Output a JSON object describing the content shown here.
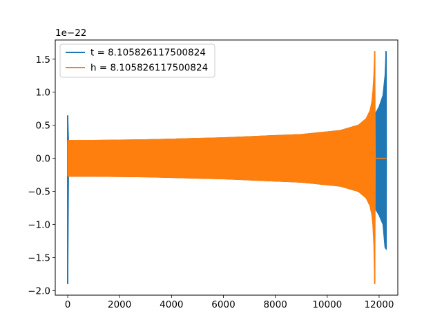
{
  "chart_data": {
    "type": "line",
    "title": "",
    "xlabel": "",
    "ylabel": "",
    "offset_text": "1e−22",
    "xlim": [
      -480,
      12720
    ],
    "ylim": [
      -2.07,
      1.79
    ],
    "xticks": [
      0,
      2000,
      4000,
      6000,
      8000,
      10000,
      12000
    ],
    "xtick_labels": [
      "0",
      "2000",
      "4000",
      "6000",
      "8000",
      "10000",
      "12000"
    ],
    "yticks": [
      -2.0,
      -1.5,
      -1.0,
      -0.5,
      0.0,
      0.5,
      1.0,
      1.5
    ],
    "ytick_labels": [
      "−2.0",
      "−1.5",
      "−1.0",
      "−0.5",
      "0.0",
      "0.5",
      "1.0",
      "1.5"
    ],
    "grid": false,
    "legend_position": "top-left",
    "series": [
      {
        "name": "t = 8.105826117500824",
        "color": "#1f77b4",
        "x_range": [
          0,
          12280
        ],
        "envelope": {
          "x": [
            0,
            30,
            100,
            1000,
            3000,
            6000,
            9000,
            10500,
            11200,
            11600,
            11800,
            11850,
            12000,
            12150,
            12230,
            12270,
            12280
          ],
          "upper": [
            0.63,
            0.27,
            0.27,
            0.27,
            0.28,
            0.31,
            0.36,
            0.42,
            0.5,
            0.6,
            0.65,
            0.67,
            0.78,
            0.95,
            1.25,
            1.62,
            0.0
          ],
          "lower": [
            -1.9,
            -0.27,
            -0.27,
            -0.27,
            -0.28,
            -0.31,
            -0.36,
            -0.42,
            -0.5,
            -0.6,
            -0.7,
            -0.76,
            -0.86,
            -1.0,
            -1.35,
            -1.37,
            0.0
          ]
        },
        "spikes": [
          {
            "x": 0,
            "y_min": -1.9,
            "y_max": 0.65
          },
          {
            "x": 12265,
            "y_min": -1.37,
            "y_max": 1.62
          }
        ]
      },
      {
        "name": "h = 8.105826117500824",
        "color": "#ff7f0e",
        "x_range": [
          0,
          12280
        ],
        "envelope": {
          "x": [
            0,
            20,
            100,
            1000,
            3000,
            6000,
            9000,
            10500,
            11200,
            11500,
            11650,
            11720,
            11760,
            11800,
            11830,
            11850
          ],
          "upper": [
            0.27,
            0.27,
            0.27,
            0.27,
            0.28,
            0.31,
            0.36,
            0.42,
            0.5,
            0.6,
            0.72,
            0.85,
            1.0,
            1.25,
            1.62,
            0.0
          ],
          "lower": [
            -0.27,
            -0.27,
            -0.27,
            -0.27,
            -0.28,
            -0.31,
            -0.36,
            -0.42,
            -0.5,
            -0.6,
            -0.72,
            -0.85,
            -1.0,
            -1.3,
            -1.9,
            0.0
          ]
        },
        "spikes": [
          {
            "x": 11830,
            "y_min": -1.9,
            "y_max": 1.62
          }
        ],
        "tail": {
          "x": [
            11850,
            12280
          ],
          "y": 0.0
        }
      }
    ]
  }
}
